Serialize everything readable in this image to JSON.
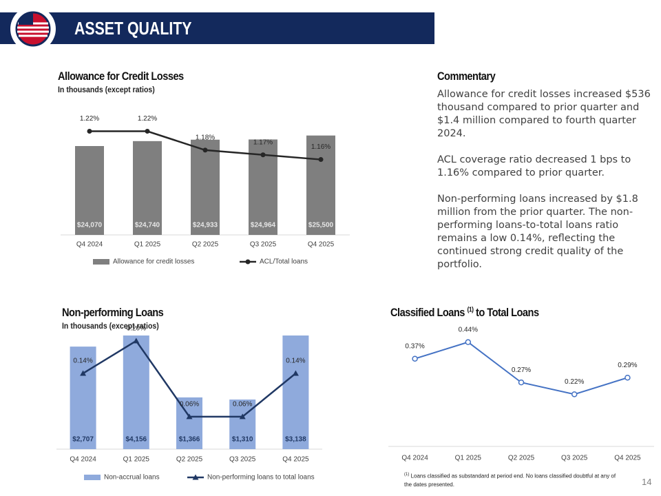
{
  "header": {
    "title": "ASSET QUALITY"
  },
  "chart_data": [
    {
      "type": "combo",
      "title": "Allowance for Credit Losses",
      "subtitle": "In thousands (except ratios)",
      "categories": [
        "Q4 2024",
        "Q1 2025",
        "Q2 2025",
        "Q3 2025",
        "Q4 2025"
      ],
      "series": [
        {
          "name": "Allowance for credit losses",
          "type": "bar",
          "color": "#7f7f7f",
          "label_color": "#e6e6e6",
          "values": [
            24070,
            24740,
            24933,
            24964,
            25500
          ],
          "value_labels": [
            "$24,070",
            "$24,740",
            "$24,933",
            "$24,964",
            "$25,500"
          ]
        },
        {
          "name": "ACL/Total loans",
          "type": "line",
          "axis": "y2",
          "color": "#262626",
          "marker": "circle",
          "values": [
            1.22,
            1.22,
            1.18,
            1.17,
            1.16
          ],
          "value_labels": [
            "1.22%",
            "1.22%",
            "1.18%",
            "1.17%",
            "1.16%"
          ]
        }
      ],
      "ylim": [
        12000,
        28000
      ],
      "y2lim": [
        1.0,
        1.25
      ],
      "legend": "bottom"
    },
    {
      "type": "combo",
      "title": "Non-performing Loans",
      "subtitle": "In thousands (except ratios)",
      "categories": [
        "Q4 2024",
        "Q1 2025",
        "Q2 2025",
        "Q3 2025",
        "Q4 2025"
      ],
      "series": [
        {
          "name": "Non-accrual loans",
          "type": "bar",
          "color": "#8faadc",
          "label_color": "#203864",
          "values": [
            2707,
            4156,
            1366,
            1310,
            3138
          ],
          "value_labels": [
            "$2,707",
            "$4,156",
            "$1,366",
            "$1,310",
            "$3,138"
          ]
        },
        {
          "name": "Non-performing loans to total loans",
          "type": "line",
          "axis": "y2",
          "color": "#203864",
          "marker": "triangle",
          "values": [
            0.14,
            0.2,
            0.06,
            0.06,
            0.14
          ],
          "value_labels": [
            "0.14%",
            "0.20%",
            "0.06%",
            "0.06%",
            "0.14%"
          ]
        }
      ],
      "ylim": [
        0,
        3000
      ],
      "y2lim": [
        0,
        0.21
      ],
      "legend": "bottom"
    },
    {
      "type": "line",
      "title": "Classified Loans",
      "title_marker": "(1)",
      "title_end": "to Total Loans",
      "categories": [
        "Q4 2024",
        "Q1 2025",
        "Q2 2025",
        "Q3 2025",
        "Q4 2025"
      ],
      "series": [
        {
          "name": "Classified loans to total loans",
          "type": "line",
          "color": "#4472c4",
          "marker": "open-circle",
          "values": [
            0.37,
            0.44,
            0.27,
            0.22,
            0.29
          ],
          "value_labels": [
            "0.37%",
            "0.44%",
            "0.27%",
            "0.22%",
            "0.29%"
          ]
        }
      ],
      "ylim": [
        0,
        0.5
      ],
      "legend": "none",
      "footnote": {
        "marker": "(1)",
        "text": "Loans classified as substandard at period end. No loans classified doubtful at any of the dates presented."
      }
    }
  ],
  "commentary": {
    "title": "Commentary",
    "paragraphs": [
      "Allowance for credit losses increased $536 thousand compared to prior quarter and $1.4 million compared to fourth quarter 2024.",
      "ACL coverage ratio decreased 1 bps to 1.16% compared to prior quarter.",
      "Non-performing loans increased by $1.8 million from the prior quarter. The non-performing loans-to-total loans ratio remains a low 0.14%, reflecting the continued strong credit quality of the portfolio."
    ]
  },
  "page_number": "14"
}
